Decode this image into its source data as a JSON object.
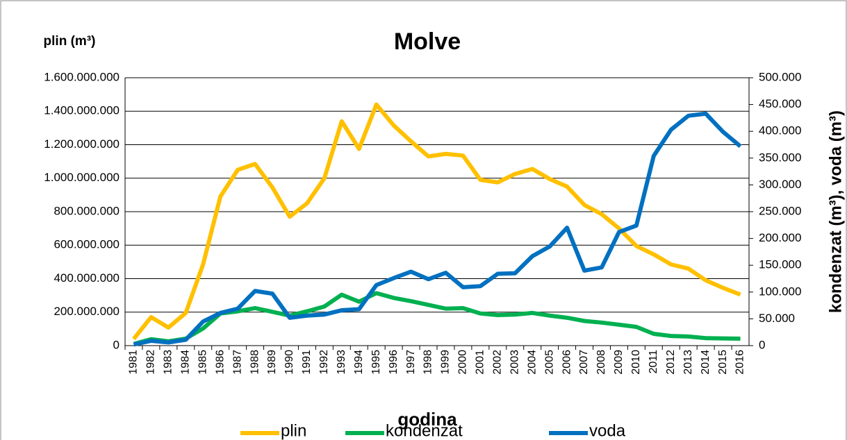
{
  "chart_data": {
    "type": "line",
    "title": "Molve",
    "y_label": "plin (m³)",
    "y2_label": "kondenzat (m³), voda (m³)",
    "x_label": "godina",
    "categories": [
      "1981",
      "1982",
      "1983",
      "1984",
      "1985",
      "1986",
      "1987",
      "1988",
      "1989",
      "1990",
      "1991",
      "1992",
      "1993",
      "1994",
      "1995",
      "1996",
      "1997",
      "1998",
      "1999",
      "2000",
      "2001",
      "2002",
      "2003",
      "2004",
      "2005",
      "2006",
      "2007",
      "2008",
      "2009",
      "2010",
      "2011",
      "2012",
      "2013",
      "2014",
      "2015",
      "2016"
    ],
    "series": [
      {
        "name": "plin",
        "color": "#ffc000",
        "axis": "y",
        "values": [
          40000000,
          170000000,
          108000000,
          195000000,
          485000000,
          890000000,
          1050000000,
          1085000000,
          945000000,
          770000000,
          850000000,
          1000000000,
          1340000000,
          1175000000,
          1440000000,
          1315000000,
          1220000000,
          1130000000,
          1145000000,
          1135000000,
          990000000,
          975000000,
          1025000000,
          1055000000,
          995000000,
          950000000,
          840000000,
          785000000,
          700000000,
          595000000,
          545000000,
          485000000,
          460000000,
          390000000,
          345000000,
          305000000
        ]
      },
      {
        "name": "kondenzat",
        "color": "#00b050",
        "axis": "y2",
        "values": [
          3000,
          12000,
          8000,
          13000,
          32000,
          60000,
          64000,
          70000,
          63000,
          56000,
          64000,
          73000,
          95000,
          82000,
          98000,
          89000,
          83000,
          76000,
          69000,
          70000,
          60000,
          57000,
          58000,
          61000,
          56000,
          52000,
          46000,
          43000,
          39000,
          35000,
          22000,
          18000,
          17000,
          14000,
          13500,
          13000
        ]
      },
      {
        "name": "voda",
        "color": "#0070c0",
        "axis": "y2",
        "values": [
          2000,
          9000,
          6000,
          11000,
          45000,
          61000,
          69000,
          102000,
          97000,
          52000,
          56000,
          58000,
          66000,
          68000,
          113000,
          126000,
          138000,
          124000,
          136000,
          109000,
          111000,
          134000,
          135000,
          167000,
          185000,
          220000,
          140000,
          146000,
          212000,
          224000,
          354000,
          403000,
          429000,
          433000,
          399000,
          372000
        ]
      }
    ],
    "ylim": [
      0,
      1600000000
    ],
    "yticks": [
      0,
      {
        "value": 200000000,
        "label": "200.000.000"
      },
      {
        "value": 400000000,
        "label": "400.000.000"
      },
      {
        "value": 600000000,
        "label": "600.000.000"
      },
      {
        "value": 800000000,
        "label": "800.000.000"
      },
      {
        "value": 1000000000,
        "label": "1.000.000.000"
      },
      {
        "value": 1200000000,
        "label": "1.200.000.000"
      },
      {
        "value": 1400000000,
        "label": "1.400.000.000"
      },
      {
        "value": 1600000000,
        "label": "1.600.000.000"
      }
    ],
    "y2lim": [
      0,
      500000
    ],
    "y2ticks": [
      0,
      {
        "value": 50000,
        "label": "50.000"
      },
      {
        "value": 100000,
        "label": "100.000"
      },
      {
        "value": 150000,
        "label": "150.000"
      },
      {
        "value": 200000,
        "label": "200.000"
      },
      {
        "value": 250000,
        "label": "250.000"
      },
      {
        "value": 300000,
        "label": "300.000"
      },
      {
        "value": 350000,
        "label": "350.000"
      },
      {
        "value": 400000,
        "label": "400.000"
      },
      {
        "value": 450000,
        "label": "450.000"
      },
      {
        "value": 500000,
        "label": "500.000"
      }
    ],
    "grid": true,
    "legend": "bottom"
  }
}
